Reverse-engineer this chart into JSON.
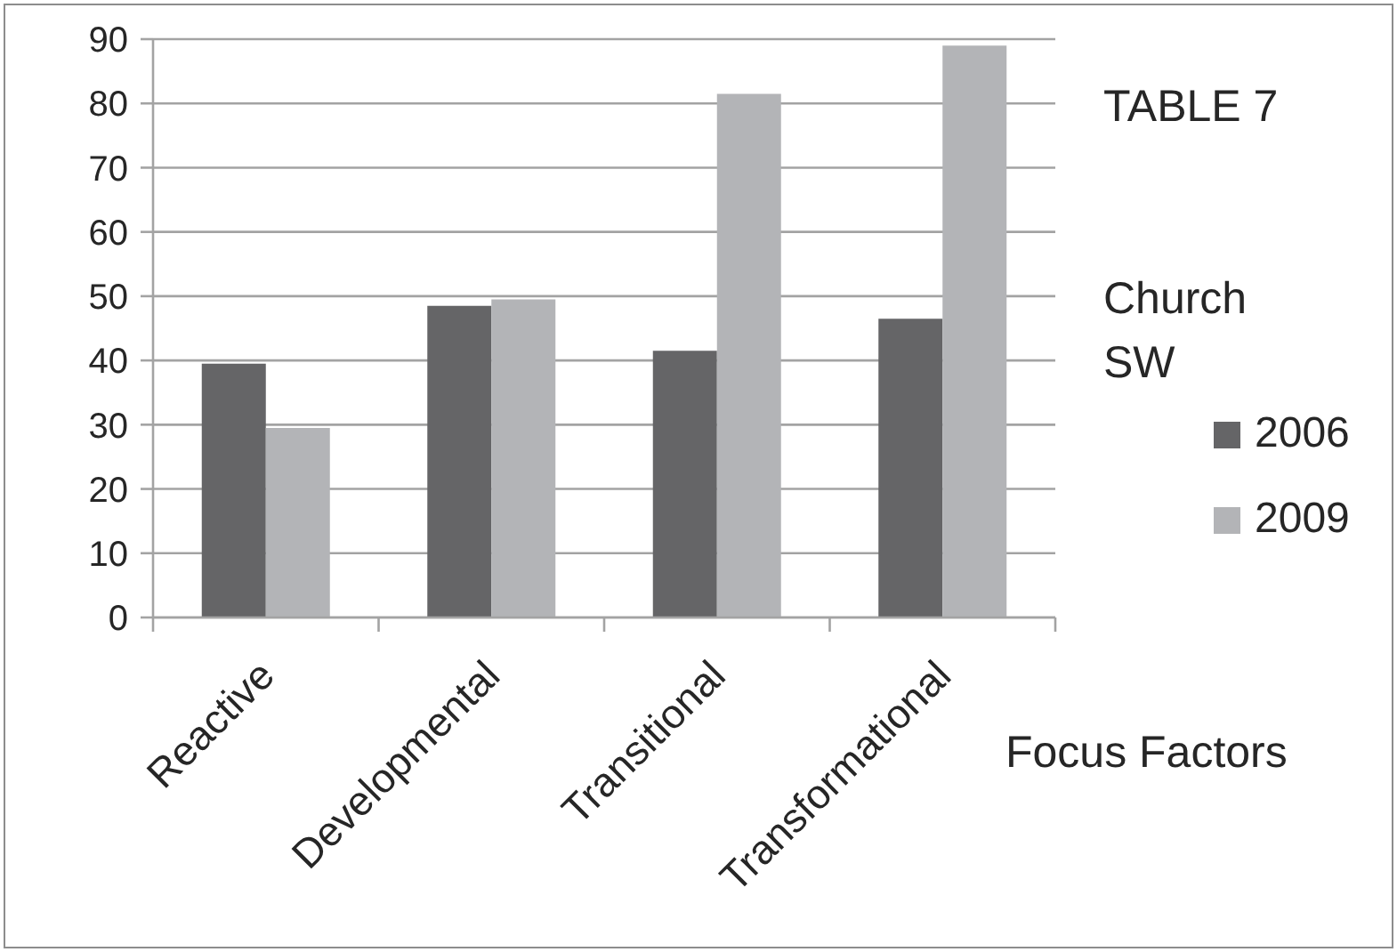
{
  "chart_data": {
    "type": "bar",
    "title": "TABLE 7",
    "legend_title": "Church SW",
    "annotations": [
      "Focus Factors"
    ],
    "categories": [
      "Reactive",
      "Developmental",
      "Transitional",
      "Transformational"
    ],
    "series": [
      {
        "name": "2006",
        "color": "#656567",
        "values": [
          39.5,
          48.5,
          41.5,
          46.5
        ]
      },
      {
        "name": "2009",
        "color": "#b3b4b7",
        "values": [
          29.5,
          49.5,
          81.5,
          89
        ]
      }
    ],
    "ylim": [
      0,
      90
    ],
    "yticks": [
      0,
      10,
      20,
      30,
      40,
      50,
      60,
      70,
      80,
      90
    ],
    "grid": "y",
    "legend": "right"
  }
}
